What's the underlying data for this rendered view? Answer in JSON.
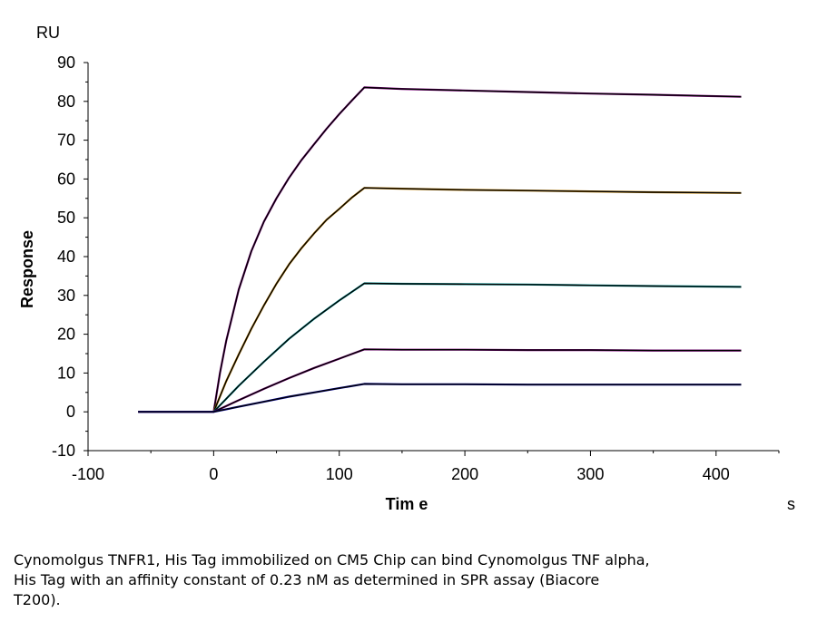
{
  "chart_data": {
    "type": "line",
    "ylabel": "Response",
    "yunit": "RU",
    "xlabel": "Tim e",
    "xunit": "s",
    "xlim": [
      -100,
      450
    ],
    "ylim": [
      -10,
      90
    ],
    "xticks": [
      -100,
      0,
      100,
      200,
      300,
      400
    ],
    "xtick_labels": [
      "-100",
      "0",
      "100",
      "200",
      "300",
      "400"
    ],
    "yticks": [
      -10,
      0,
      10,
      20,
      30,
      40,
      50,
      60,
      70,
      80,
      90
    ],
    "ytick_labels": [
      "-10",
      "0",
      "10",
      "20",
      "30",
      "40",
      "50",
      "60",
      "70",
      "80",
      "90"
    ],
    "grid": false,
    "series": [
      {
        "color": "#800080",
        "fit_color": "#000000",
        "x": [
          -60,
          0,
          5,
          10,
          20,
          30,
          40,
          50,
          60,
          70,
          80,
          90,
          100,
          110,
          120,
          150,
          200,
          250,
          300,
          350,
          420
        ],
        "y": [
          0,
          0,
          10.0,
          18.3,
          31.5,
          41.4,
          49.0,
          55.0,
          60.3,
          64.9,
          69.0,
          73.0,
          76.7,
          80.2,
          83.6,
          83.2,
          82.8,
          82.4,
          82.0,
          81.7,
          81.2
        ]
      },
      {
        "color": "#c08000",
        "fit_color": "#000000",
        "x": [
          -60,
          0,
          10,
          20,
          30,
          40,
          50,
          60,
          70,
          80,
          90,
          100,
          110,
          120,
          150,
          200,
          250,
          300,
          350,
          420
        ],
        "y": [
          0,
          0,
          7.9,
          14.8,
          21.4,
          27.4,
          33.0,
          38.0,
          42.2,
          46.0,
          49.5,
          52.3,
          55.2,
          57.7,
          57.5,
          57.2,
          57.0,
          56.8,
          56.6,
          56.4
        ]
      },
      {
        "color": "#00a0a0",
        "fit_color": "#000000",
        "x": [
          -60,
          0,
          20,
          40,
          60,
          80,
          100,
          120,
          150,
          200,
          250,
          300,
          350,
          420
        ],
        "y": [
          0,
          0,
          6.7,
          12.9,
          18.8,
          24.0,
          28.7,
          33.1,
          33.0,
          32.9,
          32.8,
          32.6,
          32.4,
          32.2
        ]
      },
      {
        "color": "#800080",
        "fit_color": "#000000",
        "x": [
          -60,
          0,
          20,
          40,
          60,
          80,
          100,
          120,
          150,
          200,
          250,
          300,
          350,
          420
        ],
        "y": [
          0,
          0,
          3.0,
          5.9,
          8.7,
          11.3,
          13.7,
          16.1,
          16.0,
          16.0,
          15.9,
          15.9,
          15.8,
          15.8
        ]
      },
      {
        "color": "#0000a0",
        "fit_color": "#000000",
        "x": [
          -60,
          0,
          20,
          40,
          60,
          80,
          100,
          120,
          150,
          200,
          250,
          300,
          350,
          420
        ],
        "y": [
          0,
          0,
          1.3,
          2.6,
          3.9,
          5.0,
          6.1,
          7.2,
          7.1,
          7.1,
          7.0,
          7.0,
          7.0,
          7.0
        ]
      }
    ]
  },
  "caption": "Cynomolgus TNFR1, His Tag immobilized on CM5 Chip can bind Cynomolgus TNF alpha,\nHis Tag with an affinity constant of 0.23 nM as determined in SPR assay (Biacore\nT200)."
}
